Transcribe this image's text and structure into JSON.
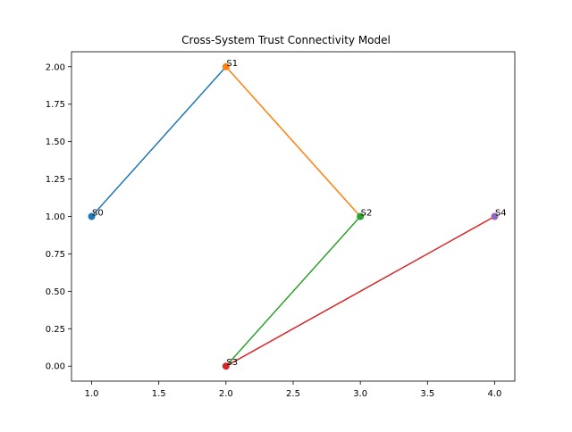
{
  "chart_data": {
    "type": "scatter",
    "title": "Cross-System Trust Connectivity Model",
    "xlabel": "",
    "ylabel": "",
    "xlim": [
      0.85,
      4.15
    ],
    "ylim": [
      -0.1,
      2.1
    ],
    "grid": false,
    "x_ticks": [
      1.0,
      1.5,
      2.0,
      2.5,
      3.0,
      3.5,
      4.0
    ],
    "x_tick_labels": [
      "1.0",
      "1.5",
      "2.0",
      "2.5",
      "3.0",
      "3.5",
      "4.0"
    ],
    "y_ticks": [
      0.0,
      0.25,
      0.5,
      0.75,
      1.0,
      1.25,
      1.5,
      1.75,
      2.0
    ],
    "y_tick_labels": [
      "0.00",
      "0.25",
      "0.50",
      "0.75",
      "1.00",
      "1.25",
      "1.50",
      "1.75",
      "2.00"
    ],
    "nodes": [
      {
        "label": "S0",
        "x": 1,
        "y": 1,
        "color": "#1f77b4"
      },
      {
        "label": "S1",
        "x": 2,
        "y": 2,
        "color": "#ff7f0e"
      },
      {
        "label": "S2",
        "x": 3,
        "y": 1,
        "color": "#2ca02c"
      },
      {
        "label": "S3",
        "x": 2,
        "y": 0,
        "color": "#d62728"
      },
      {
        "label": "S4",
        "x": 4,
        "y": 1,
        "color": "#9467bd"
      }
    ],
    "edges": [
      {
        "from": "S0",
        "to": "S1",
        "color": "#1f77b4"
      },
      {
        "from": "S1",
        "to": "S2",
        "color": "#ff7f0e"
      },
      {
        "from": "S2",
        "to": "S3",
        "color": "#2ca02c"
      },
      {
        "from": "S3",
        "to": "S4",
        "color": "#d62728"
      }
    ]
  }
}
